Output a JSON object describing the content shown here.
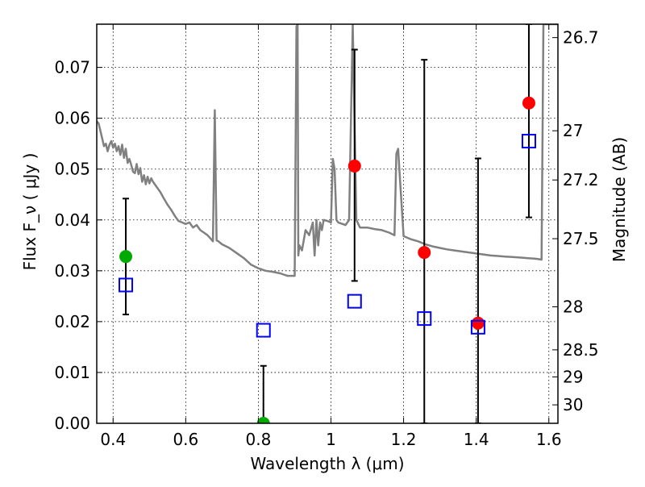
{
  "chart_data": {
    "type": "scatter",
    "xlabel": "Wavelength  λ (μm)",
    "ylabel": "Flux  F_ν  ( μJy )",
    "ylabel_right": "Magnitude (AB)",
    "xlim": [
      0.355,
      1.625
    ],
    "ylim": [
      0.0,
      0.0785
    ],
    "x_ticks": [
      0.4,
      0.6,
      0.8,
      1.0,
      1.2,
      1.4,
      1.6
    ],
    "x_tick_labels": [
      "0.4",
      "0.6",
      "0.8",
      "1",
      "1.2",
      "1.4",
      "1.6"
    ],
    "y_ticks": [
      0.0,
      0.01,
      0.02,
      0.03,
      0.04,
      0.05,
      0.06,
      0.07
    ],
    "y_tick_labels": [
      "0.00",
      "0.01",
      "0.02",
      "0.03",
      "0.04",
      "0.05",
      "0.06",
      "0.07"
    ],
    "right_ticks": [
      {
        "flux": 0.07586,
        "label": "26.7"
      },
      {
        "flux": 0.05754,
        "label": "27"
      },
      {
        "flux": 0.04786,
        "label": "27.2"
      },
      {
        "flux": 0.03631,
        "label": "27.5"
      },
      {
        "flux": 0.02291,
        "label": "28"
      },
      {
        "flux": 0.01445,
        "label": "28.5"
      },
      {
        "flux": 0.00912,
        "label": "29"
      },
      {
        "flux": 0.00363,
        "label": "30"
      }
    ],
    "grid": true,
    "colors": {
      "observed_detected": "#ff0000",
      "observed_upper": "#00aa00",
      "model_photometry": "#0000ff",
      "template": "#808080",
      "errorbar": "#000000"
    },
    "series": [
      {
        "type": "scatter",
        "marker": "circle",
        "color": "#ff0000",
        "x": [
          1.065,
          1.257,
          1.405,
          1.545
        ],
        "y": [
          0.0506,
          0.0336,
          0.0197,
          0.063
        ]
      },
      {
        "type": "scatter",
        "marker": "circle",
        "color": "#00aa00",
        "x": [
          0.435,
          0.814
        ],
        "y": [
          0.0328,
          0.0
        ]
      },
      {
        "type": "scatter",
        "marker": "open-square",
        "color": "#0000ff",
        "x": [
          0.435,
          0.814,
          1.065,
          1.257,
          1.405,
          1.545
        ],
        "y": [
          0.0272,
          0.0183,
          0.024,
          0.0206,
          0.0189,
          0.0555
        ]
      },
      {
        "type": "errorbar",
        "color": "#000000",
        "x": [
          0.435,
          0.814,
          1.065,
          1.257,
          1.405,
          1.545
        ],
        "y_low": [
          0.0214,
          0.0,
          0.028,
          0.0,
          0.0,
          0.0405
        ],
        "y_high": [
          0.0442,
          0.0113,
          0.0735,
          0.0715,
          0.0521,
          0.0785
        ]
      },
      {
        "type": "line",
        "color": "#808080",
        "x": [
          0.355,
          0.36,
          0.37,
          0.375,
          0.38,
          0.385,
          0.39,
          0.395,
          0.4,
          0.405,
          0.41,
          0.415,
          0.42,
          0.425,
          0.43,
          0.435,
          0.44,
          0.445,
          0.45,
          0.455,
          0.46,
          0.465,
          0.47,
          0.475,
          0.48,
          0.485,
          0.49,
          0.495,
          0.5,
          0.505,
          0.51,
          0.52,
          0.53,
          0.54,
          0.55,
          0.56,
          0.57,
          0.58,
          0.59,
          0.6,
          0.61,
          0.62,
          0.63,
          0.64,
          0.65,
          0.66,
          0.67,
          0.675,
          0.68,
          0.685,
          0.69,
          0.7,
          0.72,
          0.74,
          0.76,
          0.78,
          0.8,
          0.82,
          0.84,
          0.86,
          0.88,
          0.9,
          0.905,
          0.908,
          0.91,
          0.913,
          0.92,
          0.93,
          0.94,
          0.95,
          0.955,
          0.96,
          0.965,
          0.97,
          0.975,
          0.98,
          0.99,
          1.0,
          1.005,
          1.01,
          1.015,
          1.02,
          1.04,
          1.05,
          1.06,
          1.07,
          1.08,
          1.1,
          1.12,
          1.14,
          1.16,
          1.175,
          1.18,
          1.185,
          1.19,
          1.2,
          1.22,
          1.24,
          1.26,
          1.28,
          1.3,
          1.32,
          1.34,
          1.36,
          1.38,
          1.4,
          1.42,
          1.44,
          1.46,
          1.48,
          1.5,
          1.52,
          1.54,
          1.56,
          1.57,
          1.58,
          1.585,
          1.59,
          1.6,
          1.61,
          1.62,
          1.625
        ],
        "y": [
          0.0594,
          0.059,
          0.056,
          0.0545,
          0.055,
          0.0535,
          0.0548,
          0.0555,
          0.0542,
          0.055,
          0.0535,
          0.0545,
          0.0528,
          0.0548,
          0.0522,
          0.054,
          0.0512,
          0.052,
          0.0508,
          0.0495,
          0.0492,
          0.051,
          0.049,
          0.0502,
          0.0475,
          0.0488,
          0.047,
          0.0485,
          0.0472,
          0.0482,
          0.0475,
          0.0465,
          0.0455,
          0.0442,
          0.043,
          0.042,
          0.0408,
          0.0398,
          0.0395,
          0.0392,
          0.0395,
          0.0385,
          0.039,
          0.038,
          0.0375,
          0.037,
          0.0362,
          0.0358,
          0.0616,
          0.036,
          0.0358,
          0.0352,
          0.0345,
          0.0335,
          0.0325,
          0.0312,
          0.0305,
          0.03,
          0.0298,
          0.0295,
          0.029,
          0.029,
          0.078,
          0.0785,
          0.033,
          0.035,
          0.034,
          0.038,
          0.037,
          0.0395,
          0.033,
          0.04,
          0.035,
          0.0395,
          0.038,
          0.04,
          0.0398,
          0.0395,
          0.052,
          0.05,
          0.04,
          0.0395,
          0.039,
          0.04,
          0.0785,
          0.04,
          0.0385,
          0.0385,
          0.0382,
          0.038,
          0.0375,
          0.037,
          0.053,
          0.054,
          0.048,
          0.0368,
          0.0362,
          0.0358,
          0.0352,
          0.0348,
          0.0345,
          0.0342,
          0.034,
          0.0338,
          0.0336,
          0.0334,
          0.0332,
          0.033,
          0.0329,
          0.0328,
          0.0327,
          0.0326,
          0.0325,
          0.0324,
          0.0323,
          0.0322,
          0.0785,
          0.0785,
          0.0785,
          0.0785,
          0.0785,
          0.0785
        ]
      }
    ]
  }
}
